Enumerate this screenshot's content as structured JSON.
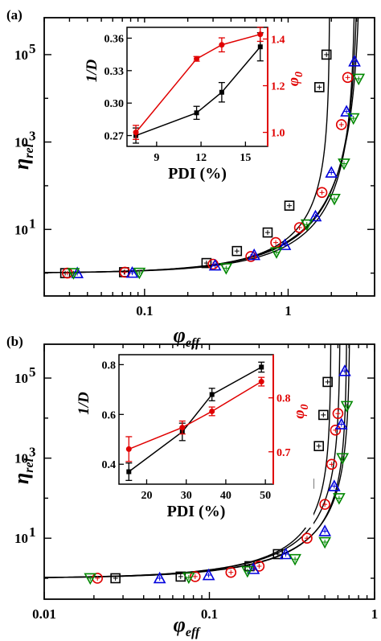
{
  "chart_data": [
    {
      "type": "scatter",
      "panel_label": "(a)",
      "xlabel_main": "φ",
      "xlabel_sub": "eff",
      "ylabel_main": "η",
      "ylabel_sub": "rel",
      "xscale": "log",
      "yscale": "log",
      "xlim": [
        0.02,
        4
      ],
      "ylim": [
        0.3,
        700000
      ],
      "xticks": [
        {
          "v": 0.1,
          "label": "0.1"
        },
        {
          "v": 1,
          "label": "1"
        }
      ],
      "yticks": [
        {
          "v": 10,
          "label": "10",
          "exp": "1"
        },
        {
          "v": 1000,
          "label": "10",
          "exp": "3"
        },
        {
          "v": 100000,
          "label": "10",
          "exp": "5"
        }
      ],
      "series": [
        {
          "marker": "square",
          "color": "#000000",
          "points": [
            [
              0.028,
              1
            ],
            [
              0.072,
              1.05
            ],
            [
              0.27,
              1.7
            ],
            [
              0.44,
              3.2
            ],
            [
              0.72,
              8.5
            ],
            [
              1.02,
              35
            ],
            [
              1.25,
              200
            ],
            [
              1.65,
              18000
            ],
            [
              1.85,
              100000
            ]
          ]
        },
        {
          "marker": "circle",
          "color": "#e00000",
          "points": [
            [
              0.029,
              1
            ],
            [
              0.073,
              1.05
            ],
            [
              0.3,
              1.6
            ],
            [
              0.55,
              2.4
            ],
            [
              0.82,
              5
            ],
            [
              1.2,
              11
            ],
            [
              1.72,
              70
            ],
            [
              2.35,
              2500
            ],
            [
              2.6,
              30000
            ]
          ]
        },
        {
          "marker": "triangle-up",
          "color": "#0000dd",
          "points": [
            [
              0.034,
              1
            ],
            [
              0.082,
              1.02
            ],
            [
              0.31,
              1.5
            ],
            [
              0.58,
              2.6
            ],
            [
              0.95,
              4.4
            ],
            [
              1.55,
              20
            ],
            [
              2.0,
              200
            ],
            [
              2.55,
              5000
            ],
            [
              2.9,
              70000
            ]
          ]
        },
        {
          "marker": "triangle-down",
          "color": "#008800",
          "points": [
            [
              0.032,
              1
            ],
            [
              0.092,
              1.02
            ],
            [
              0.37,
              1.3
            ],
            [
              0.83,
              3
            ],
            [
              1.35,
              13
            ],
            [
              2.1,
              50
            ],
            [
              2.45,
              320
            ],
            [
              2.85,
              3500
            ],
            [
              3.1,
              28000
            ]
          ]
        }
      ],
      "fit_lines": [
        {
          "phi_m": 1.95,
          "exp": 2.6
        },
        {
          "phi_m": 2.95,
          "exp": 3.6
        },
        {
          "phi_m": 3.1,
          "exp": 4.2
        },
        {
          "phi_m": 3.25,
          "exp": 4.6
        }
      ],
      "inset": {
        "type": "line",
        "xlabel": "PDI (%)",
        "ylabel_left": "1/D",
        "ylabel_right_main": "φ",
        "ylabel_right_sub": "0",
        "xlim": [
          7,
          16.5
        ],
        "xticks": [
          9,
          12,
          15
        ],
        "ylim_left": [
          0.26,
          0.37
        ],
        "yticks_left": [
          0.27,
          0.3,
          0.33,
          0.36
        ],
        "yticklabels_left": [
          "0.27",
          "0.30",
          "0.33",
          "0.36"
        ],
        "ylim_right": [
          0.94,
          1.45
        ],
        "yticks_right": [
          1.0,
          1.2,
          1.4
        ],
        "yticklabels_right": [
          "1.0",
          "1.2",
          "1.4"
        ],
        "series": [
          {
            "axis": "left",
            "color": "#000000",
            "x": [
              7.6,
              11.7,
              13.4,
              16.0
            ],
            "y": [
              0.27,
              0.291,
              0.31,
              0.352
            ],
            "err": [
              0.007,
              0.006,
              0.009,
              0.013
            ]
          },
          {
            "axis": "right",
            "color": "#e00000",
            "x": [
              7.6,
              11.7,
              13.4,
              16.0
            ],
            "y": [
              1.0,
              1.315,
              1.375,
              1.42
            ],
            "err": [
              0.03,
              0.01,
              0.03,
              0.03
            ]
          }
        ]
      }
    },
    {
      "type": "scatter",
      "panel_label": "(b)",
      "xlabel_main": "φ",
      "xlabel_sub": "eff",
      "ylabel_main": "η",
      "ylabel_sub": "rel",
      "xscale": "log",
      "yscale": "log",
      "xlim": [
        0.01,
        1
      ],
      "ylim": [
        0.3,
        700000
      ],
      "xticks": [
        {
          "v": 0.01,
          "label": "0.01"
        },
        {
          "v": 0.1,
          "label": "0.1"
        },
        {
          "v": 1,
          "label": "1"
        }
      ],
      "yticks": [
        {
          "v": 10,
          "label": "10",
          "exp": "1"
        },
        {
          "v": 1000,
          "label": "10",
          "exp": "3"
        },
        {
          "v": 100000,
          "label": "10",
          "exp": "5"
        }
      ],
      "series": [
        {
          "marker": "square",
          "color": "#000000",
          "points": [
            [
              0.027,
              1
            ],
            [
              0.067,
              1.1
            ],
            [
              0.175,
              2
            ],
            [
              0.26,
              4
            ],
            [
              0.33,
              30
            ],
            [
              0.4,
              230
            ],
            [
              0.46,
              2000
            ],
            [
              0.49,
              12000
            ],
            [
              0.52,
              80000
            ]
          ]
        },
        {
          "marker": "circle",
          "color": "#e00000",
          "points": [
            [
              0.021,
              1
            ],
            [
              0.082,
              1.1
            ],
            [
              0.135,
              1.4
            ],
            [
              0.2,
              2
            ],
            [
              0.39,
              10
            ],
            [
              0.5,
              70
            ],
            [
              0.55,
              700
            ],
            [
              0.58,
              5000
            ],
            [
              0.6,
              13000
            ]
          ]
        },
        {
          "marker": "triangle-up",
          "color": "#0000dd",
          "points": [
            [
              0.05,
              1
            ],
            [
              0.099,
              1.2
            ],
            [
              0.185,
              1.7
            ],
            [
              0.29,
              4
            ],
            [
              0.5,
              15
            ],
            [
              0.57,
              200
            ],
            [
              0.63,
              7000
            ],
            [
              0.66,
              150000
            ]
          ]
        },
        {
          "marker": "triangle-down",
          "color": "#008800",
          "points": [
            [
              0.019,
              1
            ],
            [
              0.075,
              1.05
            ],
            [
              0.17,
              1.5
            ],
            [
              0.33,
              3
            ],
            [
              0.5,
              8
            ],
            [
              0.61,
              100
            ],
            [
              0.64,
              1000
            ],
            [
              0.68,
              20000
            ]
          ]
        }
      ],
      "fit_lines": [
        {
          "phi_m": 0.545,
          "exp": 2.4
        },
        {
          "phi_m": 0.62,
          "exp": 2.7
        },
        {
          "phi_m": 0.68,
          "exp": 2.6
        },
        {
          "phi_m": 0.71,
          "exp": 2.8
        }
      ],
      "inset": {
        "type": "line",
        "xlabel": "PDI (%)",
        "ylabel_left": "1/D",
        "ylabel_right_main": "φ",
        "ylabel_right_sub": "0",
        "xlim": [
          13,
          52
        ],
        "xticks": [
          20,
          30,
          40,
          50
        ],
        "ylim_left": [
          0.32,
          0.84
        ],
        "yticks_left": [
          0.4,
          0.6,
          0.8
        ],
        "yticklabels_left": [
          "0.4",
          "0.6",
          "0.8"
        ],
        "ylim_right": [
          0.64,
          0.88
        ],
        "yticks_right": [
          0.7,
          0.8
        ],
        "yticklabels_right": [
          "0.7",
          "0.8"
        ],
        "series": [
          {
            "axis": "left",
            "color": "#000000",
            "x": [
              15.5,
              29,
              36.5,
              49
            ],
            "y": [
              0.37,
              0.53,
              0.68,
              0.79
            ],
            "err": [
              0.035,
              0.035,
              0.025,
              0.02
            ]
          },
          {
            "axis": "right",
            "color": "#e00000",
            "x": [
              15.5,
              29,
              36.5,
              49
            ],
            "y": [
              0.705,
              0.745,
              0.775,
              0.83
            ],
            "err": [
              0.023,
              0.012,
              0.008,
              0.008
            ]
          }
        ]
      }
    }
  ]
}
